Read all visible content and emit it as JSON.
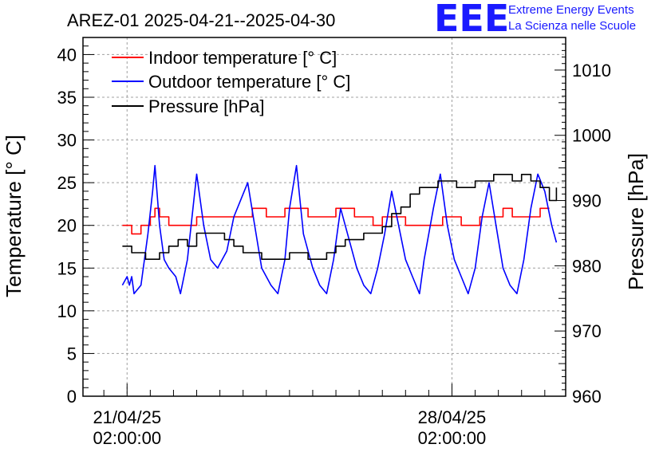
{
  "title": "AREZ-01 2025-04-21--2025-04-30",
  "logo": {
    "mark": "EEE",
    "line1": "Extreme Energy Events",
    "line2": "La Scienza nelle Scuole"
  },
  "colors": {
    "indoor": "#ff0000",
    "outdoor": "#0000ff",
    "pressure": "#000000",
    "logo": "#1a1aff",
    "grid": "#a0a0a0"
  },
  "chart_data": {
    "type": "line",
    "title": "AREZ-01 2025-04-21--2025-04-30",
    "xlabel": "",
    "ylabel": "Temperature [° C]",
    "y2label": "Pressure [hPa]",
    "x_unit": "days",
    "xlim": [
      -0.95,
      9.45
    ],
    "ylim": [
      0,
      42
    ],
    "y2lim": [
      960,
      1015
    ],
    "yticks": [
      0,
      5,
      10,
      15,
      20,
      25,
      30,
      35,
      40
    ],
    "y2ticks": [
      960,
      970,
      980,
      990,
      1000,
      1010
    ],
    "xticks": [
      {
        "x": 0,
        "label1": "21/04/25",
        "label2": "02:00:00"
      },
      {
        "x": 7,
        "label1": "28/04/25",
        "label2": "02:00:00"
      }
    ],
    "grid": true,
    "legend_position": "top-left",
    "series": [
      {
        "name": "Indoor temperature [° C]",
        "axis": "left",
        "x": [
          -0.1,
          0.05,
          0.1,
          0.2,
          0.3,
          0.5,
          0.6,
          0.7,
          0.9,
          1.2,
          1.5,
          1.9,
          2.3,
          2.5,
          2.7,
          2.8,
          3.0,
          3.2,
          3.4,
          3.6,
          3.9,
          4.3,
          4.5,
          4.7,
          4.9,
          5.1,
          5.3,
          5.5,
          5.8,
          6.0,
          6.3,
          6.5,
          6.8,
          7.0,
          7.2,
          7.4,
          7.6,
          7.9,
          8.1,
          8.3,
          8.6,
          8.9,
          9.1
        ],
        "y": [
          20,
          20,
          19,
          19,
          20,
          21,
          22,
          21,
          20,
          20,
          21,
          21,
          21,
          21,
          22,
          22,
          21,
          21,
          22,
          22,
          21,
          21,
          22,
          22,
          21,
          21,
          20,
          21,
          21,
          20,
          20,
          20,
          21,
          21,
          20,
          20,
          21,
          21,
          22,
          21,
          21,
          22,
          22
        ]
      },
      {
        "name": "Outdoor temperature [° C]",
        "axis": "left",
        "x": [
          -0.1,
          0.0,
          0.05,
          0.1,
          0.15,
          0.3,
          0.45,
          0.55,
          0.6,
          0.7,
          0.8,
          0.9,
          1.05,
          1.15,
          1.3,
          1.4,
          1.5,
          1.65,
          1.8,
          1.95,
          2.15,
          2.3,
          2.45,
          2.6,
          2.75,
          2.9,
          3.1,
          3.25,
          3.4,
          3.5,
          3.65,
          3.8,
          4.0,
          4.15,
          4.3,
          4.45,
          4.6,
          4.8,
          4.95,
          5.1,
          5.25,
          5.4,
          5.55,
          5.7,
          5.85,
          6.0,
          6.15,
          6.3,
          6.4,
          6.6,
          6.75,
          6.9,
          7.05,
          7.2,
          7.35,
          7.5,
          7.65,
          7.8,
          7.95,
          8.1,
          8.25,
          8.4,
          8.55,
          8.7,
          8.85,
          9.0,
          9.15,
          9.25
        ],
        "y": [
          13,
          14,
          13,
          14,
          12,
          13,
          19,
          24,
          27,
          20,
          16,
          15,
          14,
          12,
          16,
          21,
          26,
          20,
          16,
          15,
          17,
          21,
          23,
          25,
          20,
          15,
          13,
          12,
          16,
          22,
          27,
          19,
          15,
          13,
          12,
          16,
          22,
          18,
          15,
          13,
          12,
          15,
          19,
          24,
          20,
          16,
          14,
          12,
          16,
          22,
          26,
          20,
          16,
          14,
          12,
          15,
          21,
          25,
          20,
          15,
          13,
          12,
          16,
          22,
          26,
          24,
          20,
          18
        ]
      },
      {
        "name": "Pressure [hPa]",
        "axis": "right",
        "x": [
          -0.1,
          0.1,
          0.3,
          0.4,
          0.5,
          0.7,
          0.9,
          1.1,
          1.3,
          1.5,
          1.7,
          1.9,
          2.1,
          2.3,
          2.5,
          2.7,
          2.9,
          3.1,
          3.3,
          3.5,
          3.7,
          3.9,
          4.1,
          4.3,
          4.5,
          4.7,
          4.9,
          5.1,
          5.3,
          5.5,
          5.7,
          5.9,
          6.1,
          6.3,
          6.5,
          6.7,
          6.9,
          7.1,
          7.3,
          7.5,
          7.7,
          7.9,
          8.1,
          8.3,
          8.5,
          8.7,
          8.9,
          9.1,
          9.25
        ],
        "y": [
          983,
          982,
          982,
          981,
          981,
          982,
          983,
          984,
          983,
          985,
          985,
          985,
          984,
          983,
          982,
          982,
          981,
          981,
          981,
          982,
          982,
          981,
          981,
          982,
          983,
          984,
          984,
          985,
          985,
          986,
          988,
          989,
          991,
          992,
          992,
          993,
          993,
          992,
          992,
          993,
          993,
          994,
          994,
          993,
          994,
          993,
          992,
          990,
          992
        ]
      }
    ]
  }
}
